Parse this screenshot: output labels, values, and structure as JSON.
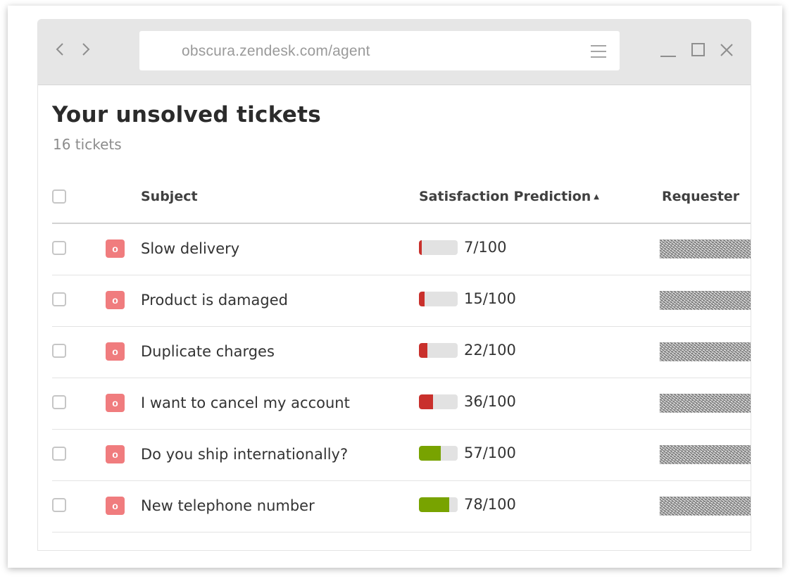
{
  "browser": {
    "url": "obscura.zendesk.com/agent",
    "icons": {
      "back": "chevron-left-icon",
      "forward": "chevron-right-icon",
      "menu": "hamburger-menu-icon",
      "minimize": "minimize-icon",
      "maximize": "maximize-icon",
      "close": "close-icon"
    }
  },
  "page": {
    "title": "Your unsolved tickets",
    "count": "16 tickets"
  },
  "table": {
    "columns": {
      "subject": "Subject",
      "satisfaction": "Satisfaction Prediction",
      "sort_indicator": "▲",
      "requester": "Requester"
    },
    "rows": [
      {
        "status": "o",
        "subject": "Slow delivery",
        "score": 7,
        "score_label": "7/100",
        "level": "low"
      },
      {
        "status": "o",
        "subject": "Product is damaged",
        "score": 15,
        "score_label": "15/100",
        "level": "low"
      },
      {
        "status": "o",
        "subject": "Duplicate charges",
        "score": 22,
        "score_label": "22/100",
        "level": "low"
      },
      {
        "status": "o",
        "subject": "I want to cancel my account",
        "score": 36,
        "score_label": "36/100",
        "level": "low"
      },
      {
        "status": "o",
        "subject": "Do you ship internationally?",
        "score": 57,
        "score_label": "57/100",
        "level": "high"
      },
      {
        "status": "o",
        "subject": "New telephone number",
        "score": 78,
        "score_label": "78/100",
        "level": "high"
      }
    ]
  },
  "colors": {
    "status_badge": "#f07c7e",
    "score_low": "#c9302c",
    "score_high": "#78a300",
    "bar_track": "#e2e2e2"
  }
}
